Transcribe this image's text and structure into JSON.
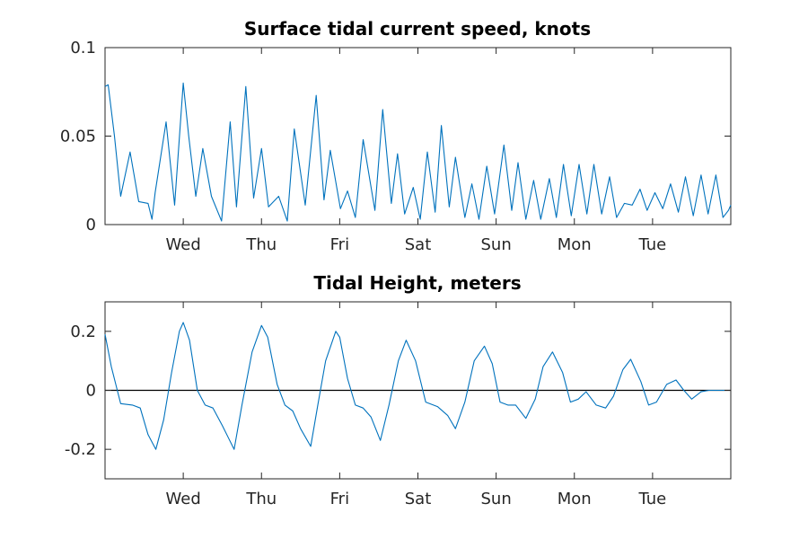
{
  "colors": {
    "series": "#0072BD",
    "axes": "#262626",
    "zero_line": "#000000"
  },
  "chart_data": [
    {
      "type": "line",
      "title": "Surface tidal current speed, knots",
      "xlabel": "",
      "ylabel": "",
      "x_unit": "days",
      "xlim": [
        0,
        8
      ],
      "ylim": [
        0,
        0.1
      ],
      "ytick_values": [
        0,
        0.05,
        0.1
      ],
      "ytick_labels": [
        "0",
        "0.05",
        "0.1"
      ],
      "xtick_values": [
        1,
        2,
        3,
        4,
        5,
        6,
        7
      ],
      "xtick_labels": [
        "Wed",
        "Thu",
        "Fri",
        "Sat",
        "Sun",
        "Mon",
        "Tue"
      ],
      "grid": false,
      "series": [
        {
          "x": [
            0.0,
            0.04,
            0.12,
            0.2,
            0.32,
            0.43,
            0.55,
            0.6,
            0.64,
            0.78,
            0.89,
            1.0,
            1.07,
            1.16,
            1.25,
            1.36,
            1.49,
            1.6,
            1.68,
            1.8,
            1.9,
            2.0,
            2.09,
            2.22,
            2.33,
            2.42,
            2.56,
            2.7,
            2.8,
            2.88,
            3.01,
            3.1,
            3.2,
            3.3,
            3.45,
            3.55,
            3.66,
            3.74,
            3.83,
            3.94,
            4.03,
            4.12,
            4.22,
            4.3,
            4.4,
            4.48,
            4.6,
            4.69,
            4.78,
            4.88,
            4.98,
            5.1,
            5.2,
            5.28,
            5.38,
            5.48,
            5.57,
            5.68,
            5.77,
            5.86,
            5.96,
            6.06,
            6.16,
            6.25,
            6.35,
            6.45,
            6.54,
            6.64,
            6.74,
            6.84,
            6.93,
            7.03,
            7.13,
            7.23,
            7.33,
            7.42,
            7.52,
            7.62,
            7.71,
            7.81,
            7.9,
            7.97,
            8.0
          ],
          "y": [
            0.078,
            0.079,
            0.05,
            0.016,
            0.041,
            0.013,
            0.012,
            0.003,
            0.018,
            0.058,
            0.011,
            0.08,
            0.05,
            0.016,
            0.043,
            0.016,
            0.002,
            0.058,
            0.01,
            0.078,
            0.015,
            0.043,
            0.01,
            0.016,
            0.002,
            0.054,
            0.011,
            0.073,
            0.014,
            0.042,
            0.009,
            0.019,
            0.004,
            0.048,
            0.008,
            0.065,
            0.012,
            0.04,
            0.006,
            0.021,
            0.003,
            0.041,
            0.007,
            0.056,
            0.01,
            0.038,
            0.004,
            0.023,
            0.003,
            0.033,
            0.006,
            0.045,
            0.008,
            0.035,
            0.003,
            0.025,
            0.003,
            0.026,
            0.004,
            0.034,
            0.005,
            0.034,
            0.006,
            0.034,
            0.006,
            0.027,
            0.004,
            0.012,
            0.011,
            0.02,
            0.008,
            0.018,
            0.009,
            0.023,
            0.007,
            0.027,
            0.005,
            0.028,
            0.006,
            0.028,
            0.004,
            0.008,
            0.011
          ]
        }
      ]
    },
    {
      "type": "line",
      "title": "Tidal Height, meters",
      "xlabel": "",
      "ylabel": "",
      "x_unit": "days",
      "xlim": [
        0,
        8
      ],
      "ylim": [
        -0.3,
        0.3
      ],
      "ytick_values": [
        -0.2,
        0,
        0.2
      ],
      "ytick_labels": [
        "-0.2",
        "0",
        "0.2"
      ],
      "xtick_values": [
        1,
        2,
        3,
        4,
        5,
        6,
        7
      ],
      "xtick_labels": [
        "Wed",
        "Thu",
        "Fri",
        "Sat",
        "Sun",
        "Mon",
        "Tue"
      ],
      "grid": false,
      "zero_line": true,
      "series": [
        {
          "x": [
            0.0,
            0.08,
            0.2,
            0.35,
            0.45,
            0.55,
            0.65,
            0.75,
            0.85,
            0.95,
            1.0,
            1.08,
            1.18,
            1.28,
            1.38,
            1.5,
            1.65,
            1.75,
            1.88,
            2.0,
            2.08,
            2.2,
            2.3,
            2.4,
            2.5,
            2.63,
            2.72,
            2.82,
            2.95,
            3.0,
            3.1,
            3.2,
            3.3,
            3.4,
            3.52,
            3.63,
            3.75,
            3.85,
            3.97,
            4.1,
            4.25,
            4.38,
            4.48,
            4.6,
            4.72,
            4.85,
            4.95,
            5.05,
            5.15,
            5.25,
            5.38,
            5.5,
            5.6,
            5.72,
            5.85,
            5.95,
            6.05,
            6.15,
            6.28,
            6.4,
            6.5,
            6.62,
            6.72,
            6.85,
            6.95,
            7.05,
            7.18,
            7.3,
            7.4,
            7.5,
            7.62,
            7.72,
            7.83,
            7.93,
            8.0
          ],
          "y": [
            0.19,
            0.08,
            -0.045,
            -0.05,
            -0.06,
            -0.15,
            -0.2,
            -0.1,
            0.06,
            0.2,
            0.23,
            0.17,
            0.0,
            -0.05,
            -0.06,
            -0.12,
            -0.2,
            -0.05,
            0.13,
            0.22,
            0.18,
            0.02,
            -0.05,
            -0.07,
            -0.13,
            -0.19,
            -0.05,
            0.1,
            0.2,
            0.18,
            0.04,
            -0.05,
            -0.06,
            -0.09,
            -0.17,
            -0.05,
            0.1,
            0.17,
            0.1,
            -0.04,
            -0.055,
            -0.085,
            -0.13,
            -0.04,
            0.1,
            0.15,
            0.09,
            -0.04,
            -0.05,
            -0.05,
            -0.095,
            -0.03,
            0.08,
            0.13,
            0.06,
            -0.04,
            -0.03,
            -0.005,
            -0.05,
            -0.06,
            -0.02,
            0.07,
            0.105,
            0.03,
            -0.05,
            -0.04,
            0.02,
            0.035,
            0.0,
            -0.03,
            -0.005,
            0.0,
            0.0,
            0.0,
            0.0
          ]
        }
      ]
    }
  ]
}
